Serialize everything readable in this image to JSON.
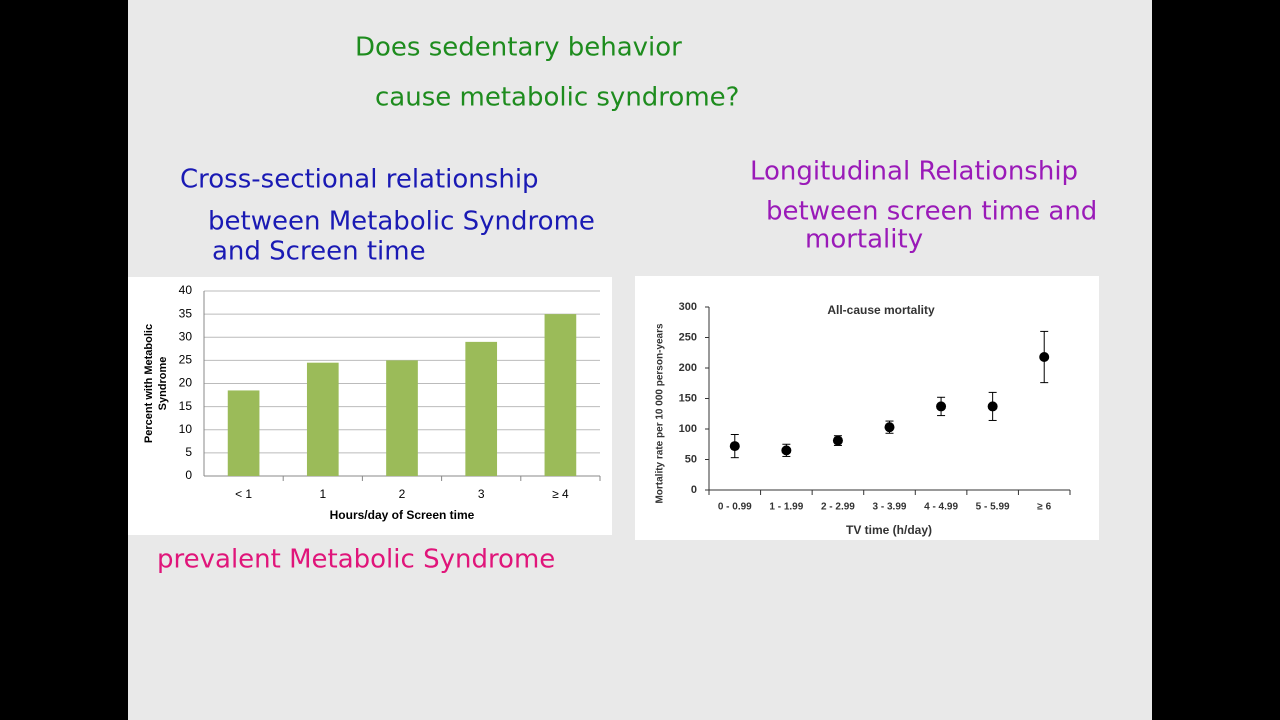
{
  "slide": {
    "title_lines": [
      "Does sedentary behavior",
      "cause metabolic syndrome?"
    ],
    "left_note": [
      "Cross-sectional relationship",
      "between Metabolic Syndrome",
      "and Screen time"
    ],
    "right_note": [
      "Longitudinal Relationship",
      "between screen time and",
      "mortality"
    ],
    "bottom_note": "prevalent Metabolic Syndrome"
  },
  "chart_data": [
    {
      "type": "bar",
      "categories": [
        "< 1",
        "1",
        "2",
        "3",
        "≥ 4"
      ],
      "values": [
        18.5,
        24.5,
        25,
        29,
        35
      ],
      "color": "#9bbb59",
      "ylim": [
        0,
        40
      ],
      "yticks": [
        0,
        5,
        10,
        15,
        20,
        25,
        30,
        35,
        40
      ],
      "grid": true,
      "y_label": [
        "Percent with Metabolic",
        "Syndrome"
      ],
      "x_label": "Hours/day of Screen time"
    },
    {
      "type": "errorbar",
      "title": "All-cause mortality",
      "categories": [
        "0 - 0.99",
        "1 - 1.99",
        "2 - 2.99",
        "3 - 3.99",
        "4 - 4.99",
        "5 - 5.99",
        "≥ 6"
      ],
      "values": [
        72,
        65,
        81,
        103,
        137,
        137,
        218
      ],
      "errors": [
        19,
        10,
        8,
        10,
        15,
        23,
        42
      ],
      "color": "#000000",
      "ylim": [
        0,
        300
      ],
      "yticks": [
        0,
        50,
        100,
        150,
        200,
        250,
        300
      ],
      "grid": false,
      "y_label": "Mortality rate per 10 000 person-years",
      "x_label": "TV time (h/day)"
    }
  ]
}
